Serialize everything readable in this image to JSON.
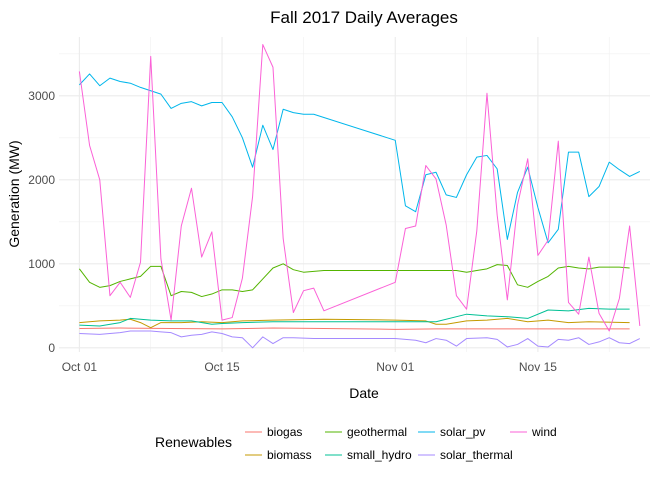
{
  "chart_data": {
    "type": "line",
    "title": "Fall 2017 Daily Averages",
    "xlabel": "Date",
    "ylabel": "Generation (MW)",
    "xlim": [
      "2017-09-29",
      "2017-11-26"
    ],
    "ylim": [
      -50,
      3700
    ],
    "x_ticks": [
      {
        "date": "2017-10-01",
        "label": "Oct 01"
      },
      {
        "date": "2017-10-15",
        "label": "Oct 15"
      },
      {
        "date": "2017-11-01",
        "label": "Nov 01"
      },
      {
        "date": "2017-11-15",
        "label": "Nov 15"
      }
    ],
    "y_ticks": [
      0,
      1000,
      2000,
      3000
    ],
    "grid": true,
    "legend": {
      "title": "Renewables",
      "placement": "bottom",
      "entries": [
        "biogas",
        "biomass",
        "geothermal",
        "small_hydro",
        "solar_pv",
        "solar_thermal",
        "wind"
      ]
    },
    "series": [
      {
        "name": "biogas",
        "color": "#F8766D",
        "points": [
          [
            "2017-10-01",
            230
          ],
          [
            "2017-10-05",
            235
          ],
          [
            "2017-10-10",
            230
          ],
          [
            "2017-10-15",
            225
          ],
          [
            "2017-10-20",
            235
          ],
          [
            "2017-10-25",
            230
          ],
          [
            "2017-11-01",
            220
          ],
          [
            "2017-11-05",
            225
          ],
          [
            "2017-11-10",
            225
          ],
          [
            "2017-11-15",
            225
          ],
          [
            "2017-11-20",
            225
          ],
          [
            "2017-11-24",
            225
          ]
        ]
      },
      {
        "name": "biomass",
        "color": "#C49A00",
        "points": [
          [
            "2017-10-01",
            300
          ],
          [
            "2017-10-03",
            320
          ],
          [
            "2017-10-05",
            330
          ],
          [
            "2017-10-06",
            340
          ],
          [
            "2017-10-07",
            300
          ],
          [
            "2017-10-08",
            240
          ],
          [
            "2017-10-09",
            300
          ],
          [
            "2017-10-11",
            300
          ],
          [
            "2017-10-13",
            310
          ],
          [
            "2017-10-15",
            300
          ],
          [
            "2017-10-17",
            320
          ],
          [
            "2017-10-20",
            330
          ],
          [
            "2017-10-25",
            340
          ],
          [
            "2017-11-01",
            330
          ],
          [
            "2017-11-04",
            320
          ],
          [
            "2017-11-05",
            280
          ],
          [
            "2017-11-06",
            280
          ],
          [
            "2017-11-08",
            320
          ],
          [
            "2017-11-10",
            330
          ],
          [
            "2017-11-12",
            350
          ],
          [
            "2017-11-14",
            310
          ],
          [
            "2017-11-16",
            330
          ],
          [
            "2017-11-18",
            300
          ],
          [
            "2017-11-20",
            310
          ],
          [
            "2017-11-24",
            300
          ]
        ]
      },
      {
        "name": "geothermal",
        "color": "#53B400",
        "points": [
          [
            "2017-10-01",
            940
          ],
          [
            "2017-10-02",
            780
          ],
          [
            "2017-10-03",
            720
          ],
          [
            "2017-10-04",
            740
          ],
          [
            "2017-10-05",
            790
          ],
          [
            "2017-10-06",
            820
          ],
          [
            "2017-10-07",
            850
          ],
          [
            "2017-10-08",
            970
          ],
          [
            "2017-10-09",
            970
          ],
          [
            "2017-10-10",
            620
          ],
          [
            "2017-10-11",
            670
          ],
          [
            "2017-10-12",
            660
          ],
          [
            "2017-10-13",
            610
          ],
          [
            "2017-10-14",
            640
          ],
          [
            "2017-10-15",
            690
          ],
          [
            "2017-10-16",
            690
          ],
          [
            "2017-10-17",
            670
          ],
          [
            "2017-10-18",
            690
          ],
          [
            "2017-10-19",
            820
          ],
          [
            "2017-10-20",
            950
          ],
          [
            "2017-10-21",
            1000
          ],
          [
            "2017-10-22",
            930
          ],
          [
            "2017-10-23",
            900
          ],
          [
            "2017-10-24",
            910
          ],
          [
            "2017-10-25",
            920
          ],
          [
            "2017-11-01",
            920
          ],
          [
            "2017-11-07",
            920
          ],
          [
            "2017-11-08",
            900
          ],
          [
            "2017-11-09",
            920
          ],
          [
            "2017-11-10",
            940
          ],
          [
            "2017-11-11",
            990
          ],
          [
            "2017-11-12",
            980
          ],
          [
            "2017-11-13",
            750
          ],
          [
            "2017-11-14",
            720
          ],
          [
            "2017-11-15",
            790
          ],
          [
            "2017-11-16",
            850
          ],
          [
            "2017-11-17",
            950
          ],
          [
            "2017-11-18",
            970
          ],
          [
            "2017-11-19",
            950
          ],
          [
            "2017-11-20",
            940
          ],
          [
            "2017-11-21",
            960
          ],
          [
            "2017-11-23",
            960
          ],
          [
            "2017-11-24",
            950
          ]
        ]
      },
      {
        "name": "small_hydro",
        "color": "#00C094",
        "points": [
          [
            "2017-10-01",
            270
          ],
          [
            "2017-10-03",
            260
          ],
          [
            "2017-10-05",
            300
          ],
          [
            "2017-10-06",
            350
          ],
          [
            "2017-10-08",
            330
          ],
          [
            "2017-10-10",
            320
          ],
          [
            "2017-10-12",
            320
          ],
          [
            "2017-10-14",
            280
          ],
          [
            "2017-10-15",
            290
          ],
          [
            "2017-10-17",
            300
          ],
          [
            "2017-10-20",
            310
          ],
          [
            "2017-10-25",
            310
          ],
          [
            "2017-11-01",
            310
          ],
          [
            "2017-11-05",
            310
          ],
          [
            "2017-11-08",
            400
          ],
          [
            "2017-11-10",
            380
          ],
          [
            "2017-11-12",
            370
          ],
          [
            "2017-11-14",
            350
          ],
          [
            "2017-11-16",
            450
          ],
          [
            "2017-11-18",
            440
          ],
          [
            "2017-11-20",
            470
          ],
          [
            "2017-11-22",
            460
          ],
          [
            "2017-11-24",
            460
          ]
        ]
      },
      {
        "name": "solar_pv",
        "color": "#00B6EB",
        "points": [
          [
            "2017-10-01",
            3130
          ],
          [
            "2017-10-02",
            3260
          ],
          [
            "2017-10-03",
            3120
          ],
          [
            "2017-10-04",
            3210
          ],
          [
            "2017-10-05",
            3170
          ],
          [
            "2017-10-06",
            3150
          ],
          [
            "2017-10-07",
            3100
          ],
          [
            "2017-10-08",
            3060
          ],
          [
            "2017-10-09",
            3020
          ],
          [
            "2017-10-10",
            2850
          ],
          [
            "2017-10-11",
            2910
          ],
          [
            "2017-10-12",
            2930
          ],
          [
            "2017-10-13",
            2880
          ],
          [
            "2017-10-14",
            2920
          ],
          [
            "2017-10-15",
            2920
          ],
          [
            "2017-10-16",
            2750
          ],
          [
            "2017-10-17",
            2500
          ],
          [
            "2017-10-18",
            2150
          ],
          [
            "2017-10-19",
            2650
          ],
          [
            "2017-10-20",
            2360
          ],
          [
            "2017-10-21",
            2840
          ],
          [
            "2017-10-22",
            2800
          ],
          [
            "2017-10-23",
            2780
          ],
          [
            "2017-10-24",
            2780
          ],
          [
            "2017-11-01",
            2470
          ],
          [
            "2017-11-02",
            1690
          ],
          [
            "2017-11-03",
            1620
          ],
          [
            "2017-11-04",
            2060
          ],
          [
            "2017-11-05",
            2090
          ],
          [
            "2017-11-06",
            1820
          ],
          [
            "2017-11-07",
            1790
          ],
          [
            "2017-11-08",
            2060
          ],
          [
            "2017-11-09",
            2270
          ],
          [
            "2017-11-10",
            2290
          ],
          [
            "2017-11-11",
            2130
          ],
          [
            "2017-11-12",
            1290
          ],
          [
            "2017-11-13",
            1850
          ],
          [
            "2017-11-14",
            2150
          ],
          [
            "2017-11-15",
            1670
          ],
          [
            "2017-11-16",
            1250
          ],
          [
            "2017-11-17",
            1410
          ],
          [
            "2017-11-18",
            2330
          ],
          [
            "2017-11-19",
            2330
          ],
          [
            "2017-11-20",
            1800
          ],
          [
            "2017-11-21",
            1920
          ],
          [
            "2017-11-22",
            2210
          ],
          [
            "2017-11-23",
            2120
          ],
          [
            "2017-11-24",
            2040
          ],
          [
            "2017-11-25",
            2100
          ]
        ]
      },
      {
        "name": "solar_thermal",
        "color": "#A58AFF",
        "points": [
          [
            "2017-10-01",
            170
          ],
          [
            "2017-10-03",
            160
          ],
          [
            "2017-10-05",
            180
          ],
          [
            "2017-10-06",
            200
          ],
          [
            "2017-10-08",
            200
          ],
          [
            "2017-10-09",
            190
          ],
          [
            "2017-10-10",
            180
          ],
          [
            "2017-10-11",
            130
          ],
          [
            "2017-10-12",
            150
          ],
          [
            "2017-10-13",
            160
          ],
          [
            "2017-10-14",
            190
          ],
          [
            "2017-10-15",
            170
          ],
          [
            "2017-10-16",
            130
          ],
          [
            "2017-10-17",
            120
          ],
          [
            "2017-10-18",
            0
          ],
          [
            "2017-10-19",
            130
          ],
          [
            "2017-10-20",
            50
          ],
          [
            "2017-10-21",
            120
          ],
          [
            "2017-10-22",
            120
          ],
          [
            "2017-10-24",
            110
          ],
          [
            "2017-11-01",
            110
          ],
          [
            "2017-11-03",
            90
          ],
          [
            "2017-11-04",
            60
          ],
          [
            "2017-11-05",
            110
          ],
          [
            "2017-11-06",
            90
          ],
          [
            "2017-11-07",
            20
          ],
          [
            "2017-11-08",
            110
          ],
          [
            "2017-11-10",
            120
          ],
          [
            "2017-11-11",
            100
          ],
          [
            "2017-11-12",
            10
          ],
          [
            "2017-11-13",
            40
          ],
          [
            "2017-11-14",
            110
          ],
          [
            "2017-11-15",
            20
          ],
          [
            "2017-11-16",
            10
          ],
          [
            "2017-11-17",
            100
          ],
          [
            "2017-11-18",
            90
          ],
          [
            "2017-11-19",
            120
          ],
          [
            "2017-11-20",
            40
          ],
          [
            "2017-11-21",
            70
          ],
          [
            "2017-11-22",
            120
          ],
          [
            "2017-11-23",
            60
          ],
          [
            "2017-11-24",
            50
          ],
          [
            "2017-11-25",
            110
          ]
        ]
      },
      {
        "name": "wind",
        "color": "#FB61D7",
        "points": [
          [
            "2017-10-01",
            3290
          ],
          [
            "2017-10-02",
            2410
          ],
          [
            "2017-10-03",
            2000
          ],
          [
            "2017-10-04",
            620
          ],
          [
            "2017-10-05",
            780
          ],
          [
            "2017-10-06",
            600
          ],
          [
            "2017-10-07",
            1020
          ],
          [
            "2017-10-08",
            3470
          ],
          [
            "2017-10-09",
            1060
          ],
          [
            "2017-10-10",
            330
          ],
          [
            "2017-10-11",
            1450
          ],
          [
            "2017-10-12",
            1900
          ],
          [
            "2017-10-13",
            1080
          ],
          [
            "2017-10-14",
            1380
          ],
          [
            "2017-10-15",
            330
          ],
          [
            "2017-10-16",
            360
          ],
          [
            "2017-10-17",
            830
          ],
          [
            "2017-10-18",
            1800
          ],
          [
            "2017-10-19",
            3610
          ],
          [
            "2017-10-20",
            3340
          ],
          [
            "2017-10-21",
            1300
          ],
          [
            "2017-10-22",
            420
          ],
          [
            "2017-10-23",
            680
          ],
          [
            "2017-10-24",
            710
          ],
          [
            "2017-10-25",
            440
          ],
          [
            "2017-11-01",
            780
          ],
          [
            "2017-11-02",
            1420
          ],
          [
            "2017-11-03",
            1450
          ],
          [
            "2017-11-04",
            2170
          ],
          [
            "2017-11-05",
            2010
          ],
          [
            "2017-11-06",
            1460
          ],
          [
            "2017-11-07",
            620
          ],
          [
            "2017-11-08",
            460
          ],
          [
            "2017-11-09",
            1390
          ],
          [
            "2017-11-10",
            3030
          ],
          [
            "2017-11-11",
            1580
          ],
          [
            "2017-11-12",
            570
          ],
          [
            "2017-11-13",
            1700
          ],
          [
            "2017-11-14",
            2250
          ],
          [
            "2017-11-15",
            1100
          ],
          [
            "2017-11-16",
            1280
          ],
          [
            "2017-11-17",
            2460
          ],
          [
            "2017-11-18",
            540
          ],
          [
            "2017-11-19",
            400
          ],
          [
            "2017-11-20",
            1080
          ],
          [
            "2017-11-21",
            410
          ],
          [
            "2017-11-22",
            200
          ],
          [
            "2017-11-23",
            590
          ],
          [
            "2017-11-24",
            1450
          ],
          [
            "2017-11-25",
            260
          ]
        ]
      }
    ]
  }
}
